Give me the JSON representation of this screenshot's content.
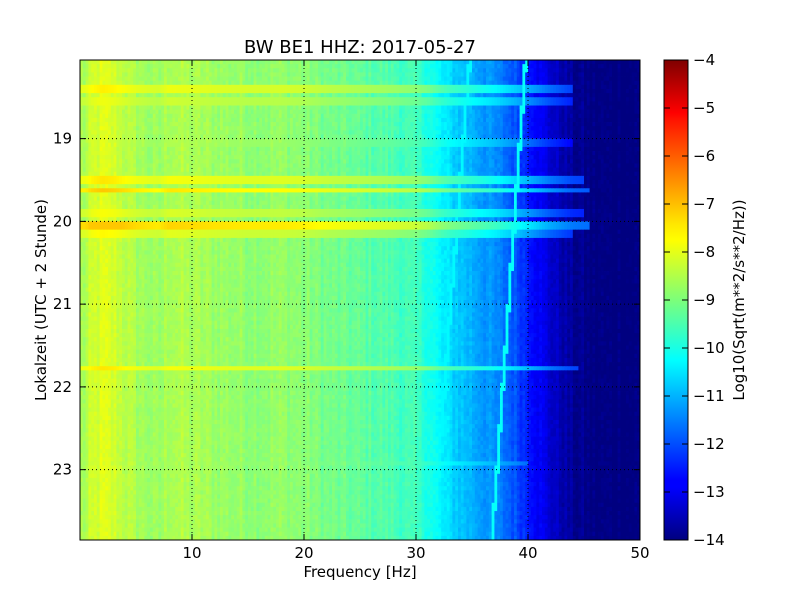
{
  "chart_data": {
    "type": "heatmap",
    "title": "BW BE1 HHZ: 2017-05-27",
    "xlabel": "Frequency [Hz]",
    "ylabel": "Lokalzeit (UTC + 2 Stunde)",
    "xlim": [
      0,
      50
    ],
    "ylim": [
      18.05,
      23.85
    ],
    "y_inverted": true,
    "x_ticks": [
      10,
      20,
      30,
      40,
      50
    ],
    "x_tick_labels": [
      "10",
      "20",
      "30",
      "40",
      "50"
    ],
    "y_ticks": [
      19,
      20,
      21,
      22,
      23
    ],
    "y_tick_labels": [
      "19",
      "20",
      "21",
      "22",
      "23"
    ],
    "grid": true,
    "colormap": "jet",
    "colorbar": {
      "label": "Log10(Sqrt(m**2/s**2/Hz))",
      "range": [
        -14,
        -4
      ],
      "ticks": [
        -4,
        -5,
        -6,
        -7,
        -8,
        -9,
        -10,
        -11,
        -12,
        -13,
        -14
      ],
      "tick_labels": [
        "−4",
        "−5",
        "−6",
        "−7",
        "−8",
        "−9",
        "−10",
        "−11",
        "−12",
        "−13",
        "−14"
      ]
    },
    "spectrum_profile": {
      "frequency_hz": [
        0.5,
        1,
        2,
        3,
        5,
        7,
        8,
        10,
        12,
        15,
        18,
        20,
        22,
        25,
        28,
        30,
        31,
        32,
        33,
        34,
        35,
        36,
        37,
        38,
        39,
        40,
        41,
        42,
        43,
        44,
        45,
        46,
        50
      ],
      "baseline_value": [
        -8.6,
        -8.3,
        -8.1,
        -8.2,
        -8.6,
        -8.8,
        -8.5,
        -8.6,
        -8.7,
        -8.8,
        -8.8,
        -8.9,
        -9.1,
        -9.3,
        -9.5,
        -9.7,
        -9.9,
        -10.3,
        -10.6,
        -10.8,
        -11.0,
        -11.2,
        -11.4,
        -11.7,
        -12.0,
        -12.4,
        -12.8,
        -13.2,
        -13.5,
        -13.8,
        -13.9,
        -14.0,
        -14.0
      ]
    },
    "noise_bands": [
      {
        "time_h": 18.4,
        "level": -8.0,
        "fmax_hz": 44
      },
      {
        "time_h": 18.55,
        "level": -8.3,
        "fmax_hz": 44
      },
      {
        "time_h": 19.05,
        "level": -8.6,
        "fmax_hz": 44
      },
      {
        "time_h": 19.5,
        "level": -7.9,
        "fmax_hz": 45
      },
      {
        "time_h": 19.63,
        "level": -7.6,
        "fmax_hz": 45.5
      },
      {
        "time_h": 19.9,
        "level": -8.2,
        "fmax_hz": 45
      },
      {
        "time_h": 20.05,
        "level": -7.4,
        "fmax_hz": 45.5
      },
      {
        "time_h": 20.15,
        "level": -8.1,
        "fmax_hz": 44
      },
      {
        "time_h": 21.78,
        "level": -7.9,
        "fmax_hz": 44.5
      },
      {
        "time_h": 22.92,
        "level": -8.7,
        "fmax_hz": 40
      }
    ],
    "spectral_lines": [
      {
        "time_h": [
          18.05,
          23.85
        ],
        "freq_hz": [
          39.8,
          36.8
        ],
        "level": -10.2
      },
      {
        "time_h": [
          18.05,
          23.85
        ],
        "freq_hz": [
          34.8,
          31.5
        ],
        "level": -10.3
      }
    ]
  }
}
